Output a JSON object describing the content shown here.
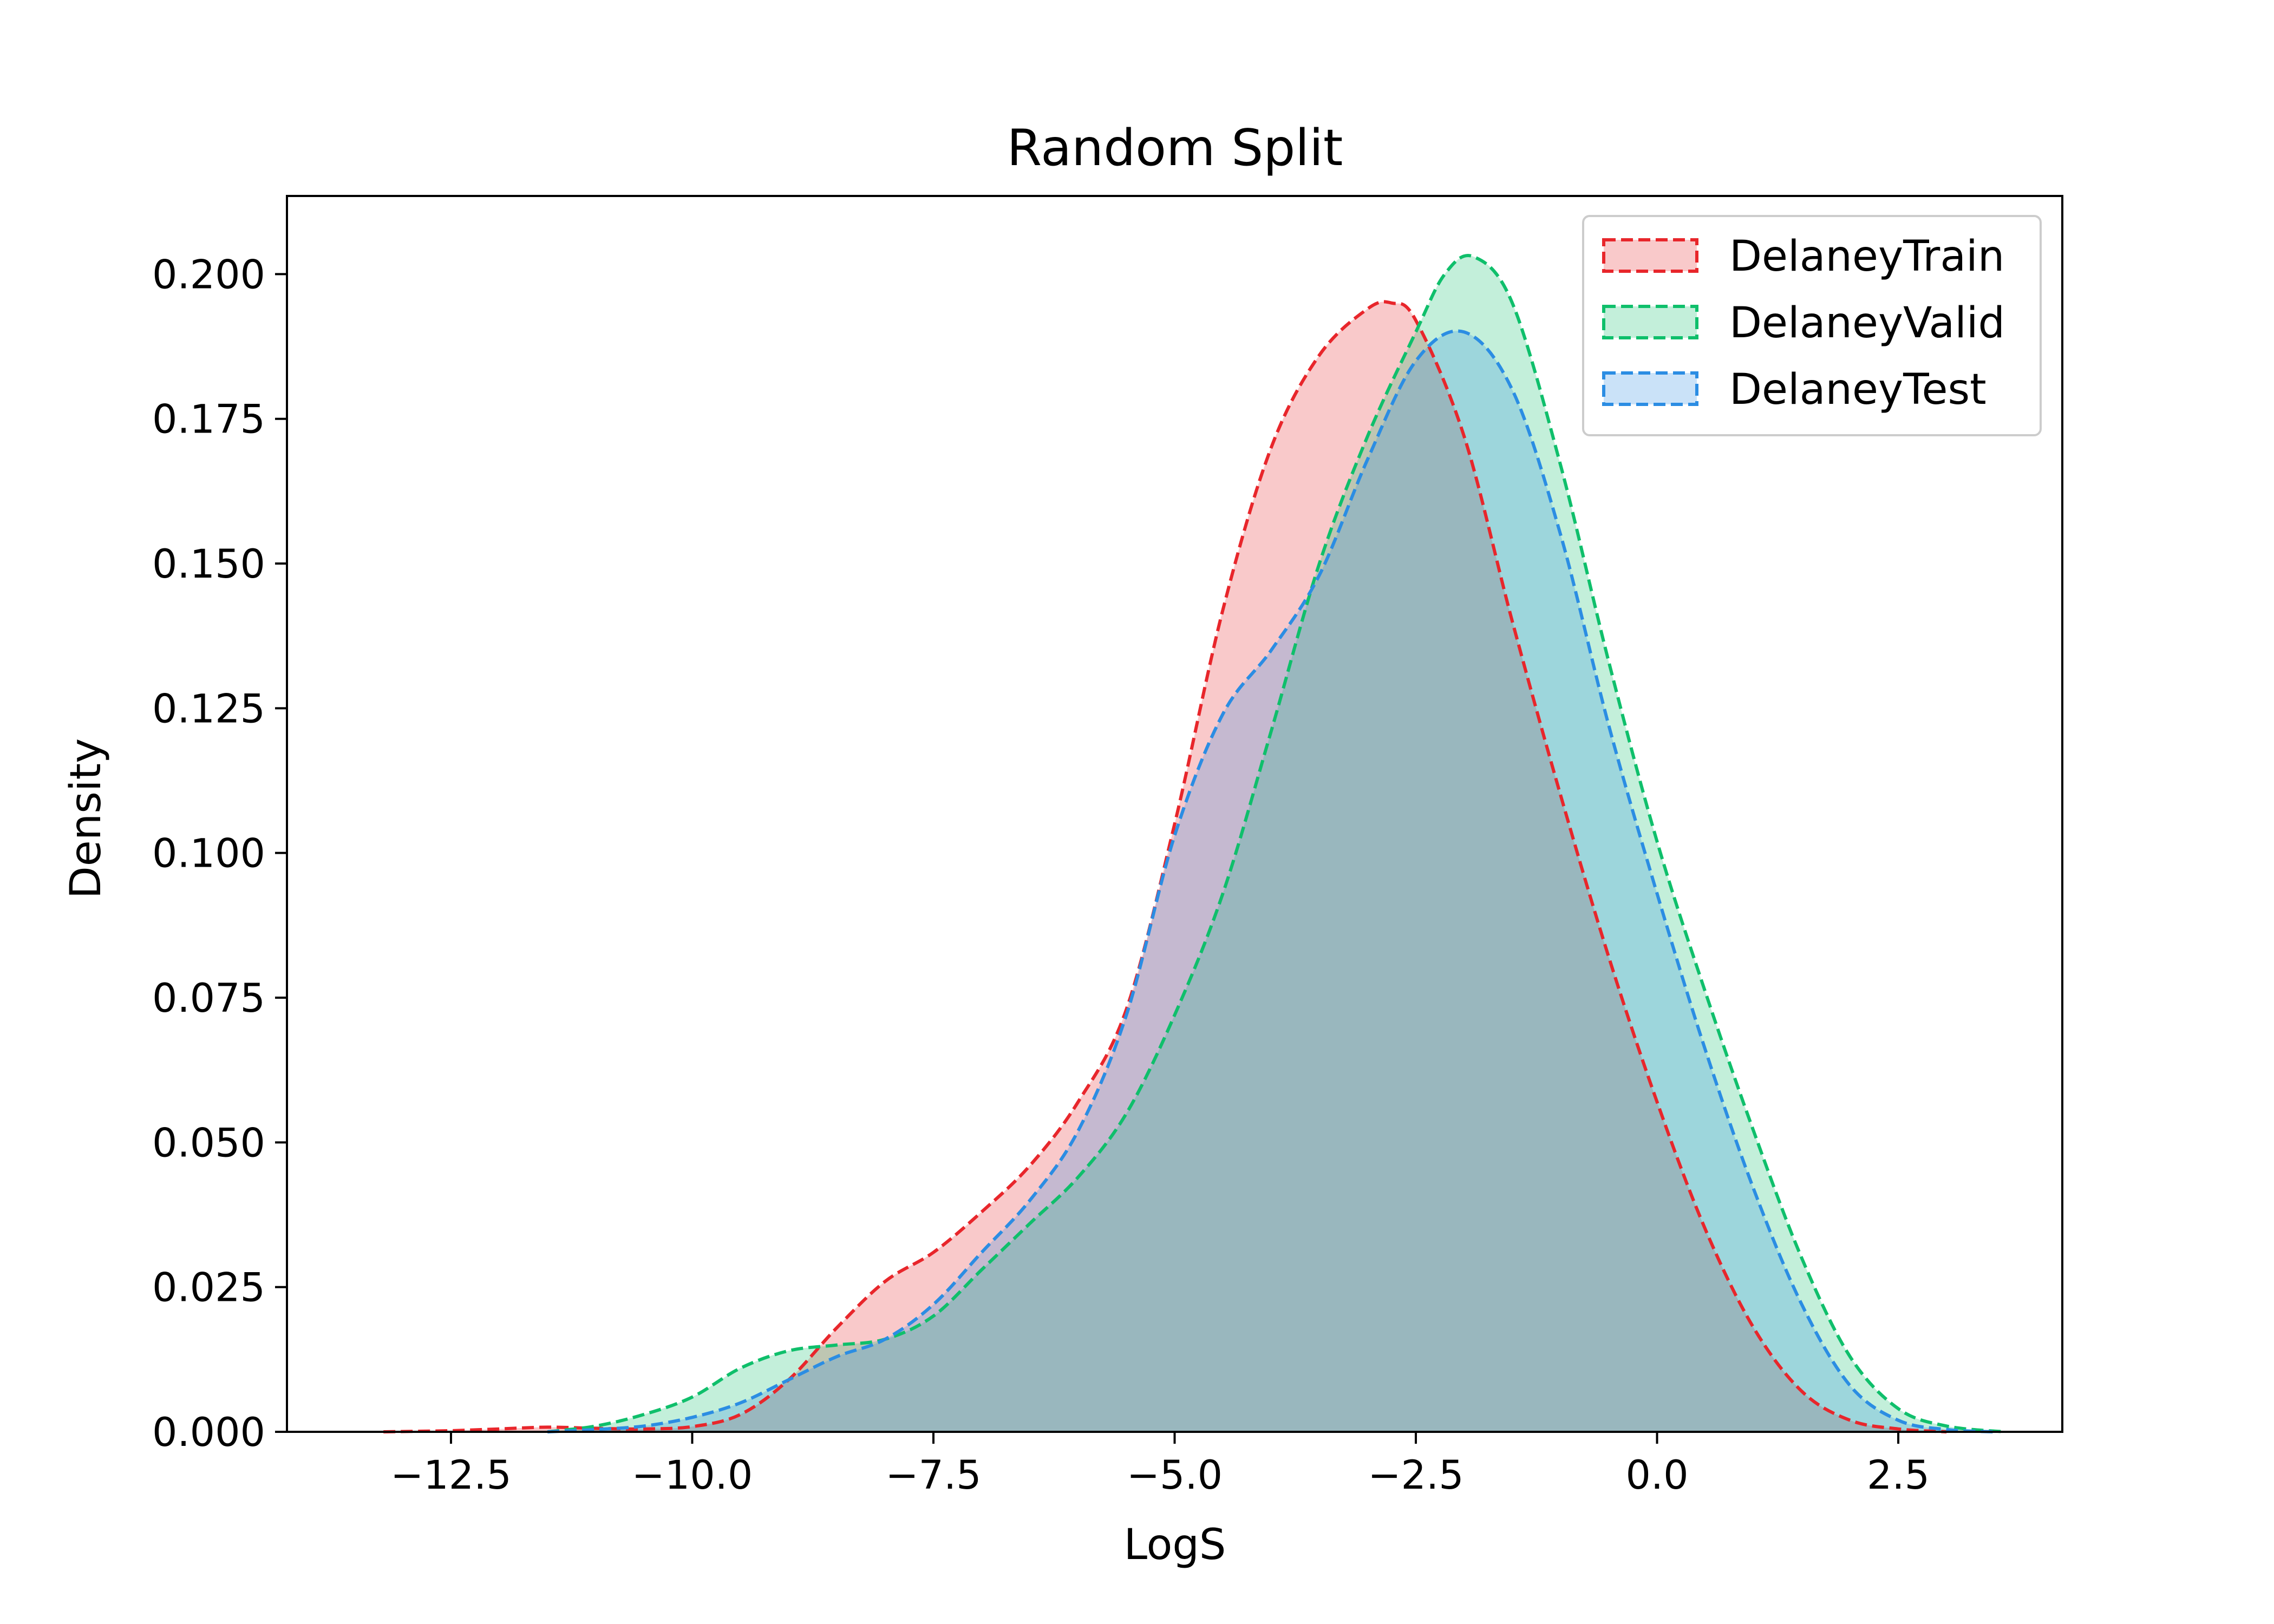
{
  "chart_data": {
    "type": "area",
    "title": "Random Split",
    "xlabel": "LogS",
    "ylabel": "Density",
    "xlim": [
      -14.2,
      4.2
    ],
    "ylim": [
      0,
      0.2135
    ],
    "xticks": [
      -12.5,
      -10.0,
      -7.5,
      -5.0,
      -2.5,
      0.0,
      2.5
    ],
    "xtick_labels": [
      "−12.5",
      "−10.0",
      "−7.5",
      "−5.0",
      "−2.5",
      "0.0",
      "2.5"
    ],
    "yticks": [
      0.0,
      0.025,
      0.05,
      0.075,
      0.1,
      0.125,
      0.15,
      0.175,
      0.2
    ],
    "ytick_labels": [
      "0.000",
      "0.025",
      "0.050",
      "0.075",
      "0.100",
      "0.125",
      "0.150",
      "0.175",
      "0.200"
    ],
    "grid": false,
    "legend_position": "top-right",
    "line_style": "dashed",
    "fill_alpha": 0.25,
    "series": [
      {
        "name": "DelaneyTrain",
        "color": "#e8262b",
        "x": [
          -13.2,
          -12.5,
          -12.0,
          -11.5,
          -11.0,
          -10.5,
          -10.0,
          -9.5,
          -9.0,
          -8.5,
          -8.0,
          -7.5,
          -7.0,
          -6.5,
          -6.0,
          -5.5,
          -5.0,
          -4.5,
          -4.0,
          -3.5,
          -3.0,
          -2.75,
          -2.5,
          -2.0,
          -1.5,
          -1.0,
          -0.5,
          0.0,
          0.5,
          1.0,
          1.5,
          2.0,
          2.5,
          3.0
        ],
        "y": [
          0.0,
          0.0002,
          0.0005,
          0.0008,
          0.0006,
          0.0005,
          0.0009,
          0.003,
          0.009,
          0.018,
          0.026,
          0.031,
          0.038,
          0.046,
          0.057,
          0.073,
          0.105,
          0.142,
          0.17,
          0.186,
          0.194,
          0.195,
          0.192,
          0.172,
          0.14,
          0.11,
          0.082,
          0.057,
          0.035,
          0.018,
          0.007,
          0.002,
          0.0005,
          0.0
        ]
      },
      {
        "name": "DelaneyValid",
        "color": "#0fbf6b",
        "x": [
          -11.5,
          -11.0,
          -10.5,
          -10.0,
          -9.5,
          -9.0,
          -8.5,
          -8.0,
          -7.5,
          -7.0,
          -6.5,
          -6.0,
          -5.5,
          -5.0,
          -4.5,
          -4.0,
          -3.5,
          -3.0,
          -2.5,
          -2.2,
          -1.9,
          -1.5,
          -1.0,
          -0.5,
          0.0,
          0.5,
          1.0,
          1.5,
          2.0,
          2.5,
          3.0,
          3.6
        ],
        "y": [
          0.0,
          0.001,
          0.003,
          0.006,
          0.011,
          0.014,
          0.015,
          0.016,
          0.02,
          0.028,
          0.036,
          0.044,
          0.055,
          0.072,
          0.093,
          0.121,
          0.15,
          0.172,
          0.19,
          0.2,
          0.203,
          0.195,
          0.167,
          0.133,
          0.102,
          0.076,
          0.052,
          0.03,
          0.013,
          0.004,
          0.001,
          0.0
        ]
      },
      {
        "name": "DelaneyTest",
        "color": "#2b8de3",
        "x": [
          -11.5,
          -11.0,
          -10.5,
          -10.0,
          -9.5,
          -9.0,
          -8.5,
          -8.0,
          -7.5,
          -7.0,
          -6.5,
          -6.0,
          -5.5,
          -5.0,
          -4.5,
          -4.0,
          -3.5,
          -3.0,
          -2.5,
          -2.0,
          -1.5,
          -1.0,
          -0.5,
          0.0,
          0.5,
          1.0,
          1.5,
          2.0,
          2.5,
          3.0,
          3.5
        ],
        "y": [
          0.0,
          0.0004,
          0.001,
          0.0025,
          0.005,
          0.009,
          0.013,
          0.016,
          0.022,
          0.031,
          0.04,
          0.052,
          0.072,
          0.103,
          0.124,
          0.135,
          0.148,
          0.168,
          0.185,
          0.19,
          0.18,
          0.155,
          0.122,
          0.093,
          0.066,
          0.042,
          0.022,
          0.008,
          0.002,
          0.0004,
          0.0
        ]
      }
    ]
  }
}
